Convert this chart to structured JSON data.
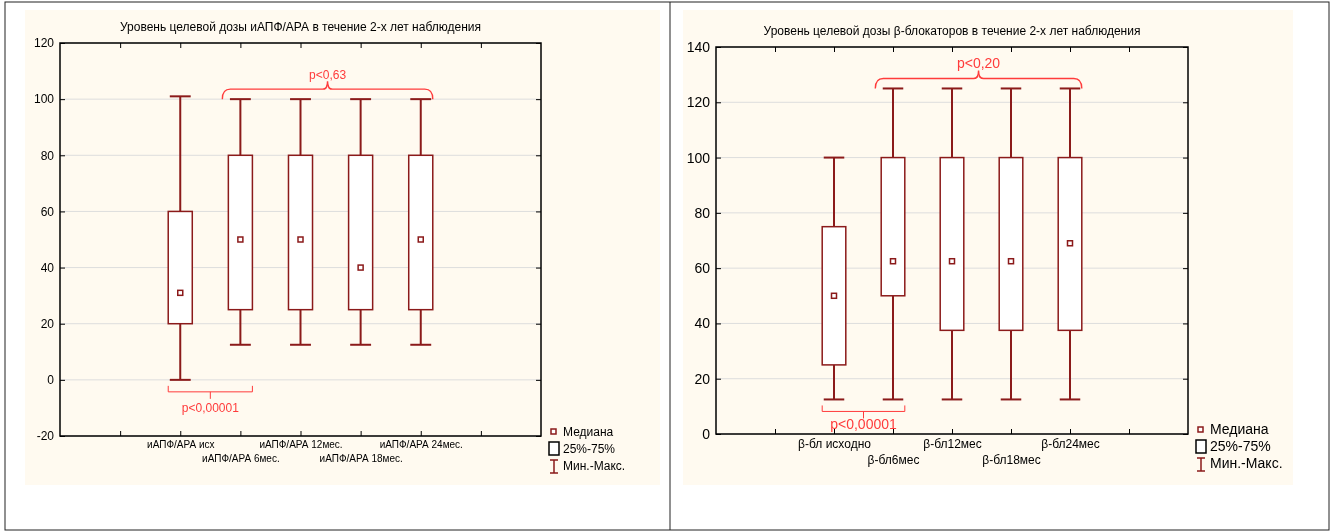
{
  "chart_data": [
    {
      "type": "box",
      "title": "Уровень целевой дозы иАПФ/АРА в течение 2-х лет наблюдения",
      "categories": [
        null,
        "иАПФ/АРА исх",
        "иАПФ/АРА 6мес.",
        "иАПФ/АРА 12мес.",
        "иАПФ/АРА 18мес.",
        "иАПФ/АРА 24мес.",
        null
      ],
      "series": [
        {
          "color": "#8b1a1a",
          "boxes": [
            null,
            {
              "low": 0,
              "q1": 20,
              "median": 31,
              "q3": 60,
              "high": 101
            },
            {
              "low": 12.5,
              "q1": 25,
              "median": 50,
              "q3": 80,
              "high": 100
            },
            {
              "low": 12.5,
              "q1": 25,
              "median": 50,
              "q3": 80,
              "high": 100
            },
            {
              "low": 12.5,
              "q1": 25,
              "median": 40,
              "q3": 80,
              "high": 100
            },
            {
              "low": 12.5,
              "q1": 25,
              "median": 50,
              "q3": 80,
              "high": 100
            },
            null
          ]
        }
      ],
      "ylim": [
        -20,
        120
      ],
      "yticks": [
        -20,
        0,
        20,
        40,
        60,
        80,
        100,
        120
      ],
      "grid": "y",
      "annotations": [
        "p<0,63",
        "p<0,00001",
        "Медиана",
        "25%-75%",
        "Мин.-Макс."
      ]
    },
    {
      "type": "box",
      "title": "Уровень целевой дозы β-блокаторов в течение 2-х лет наблюдения",
      "categories": [
        null,
        "β-бл исходно",
        "β-бл6мес",
        "β-бл12мес",
        "β-бл18мес",
        "β-бл24мес",
        null
      ],
      "series": [
        {
          "color": "#8b1a1a",
          "boxes": [
            null,
            {
              "low": 12.5,
              "q1": 25,
              "median": 50,
              "q3": 75,
              "high": 100
            },
            {
              "low": 12.5,
              "q1": 50,
              "median": 62.5,
              "q3": 100,
              "high": 125
            },
            {
              "low": 12.5,
              "q1": 37.5,
              "median": 62.5,
              "q3": 100,
              "high": 125
            },
            {
              "low": 12.5,
              "q1": 37.5,
              "median": 62.5,
              "q3": 100,
              "high": 125
            },
            {
              "low": 12.5,
              "q1": 37.5,
              "median": 69,
              "q3": 100,
              "high": 125
            },
            null
          ]
        }
      ],
      "ylim": [
        0,
        140
      ],
      "yticks": [
        0,
        20,
        40,
        60,
        80,
        100,
        120,
        140
      ],
      "grid": "y",
      "annotations": [
        "p<0,20",
        "p<0,00001",
        "Медиана",
        "25%-75%",
        "Мин.-Макс."
      ]
    }
  ]
}
